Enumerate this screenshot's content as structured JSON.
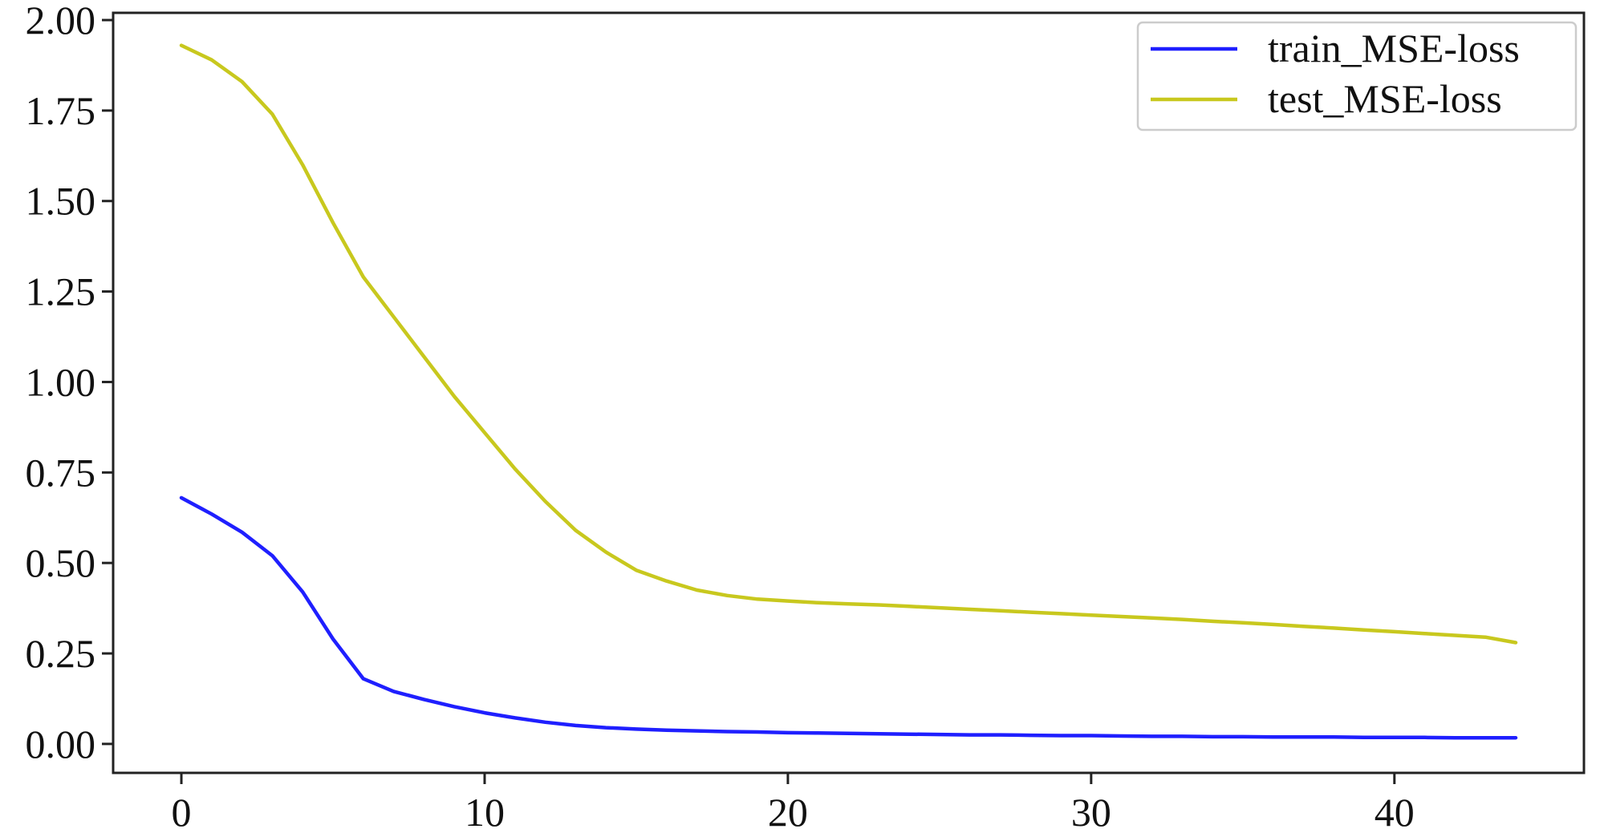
{
  "chart_data": {
    "type": "line",
    "title": "",
    "xlabel": "",
    "ylabel": "",
    "xlim": [
      -2.25,
      46.25
    ],
    "ylim": [
      -0.08,
      2.02
    ],
    "grid": false,
    "legend_position": "top-right",
    "xticks": [
      0,
      10,
      20,
      30,
      40
    ],
    "xtick_labels": [
      "0",
      "10",
      "20",
      "30",
      "40"
    ],
    "yticks": [
      0,
      0.25,
      0.5,
      0.75,
      1.0,
      1.25,
      1.5,
      1.75,
      2.0
    ],
    "ytick_labels": [
      "0.00",
      "0.25",
      "0.50",
      "0.75",
      "1.00",
      "1.25",
      "1.50",
      "1.75",
      "2.00"
    ],
    "x": [
      0,
      1,
      2,
      3,
      4,
      5,
      6,
      7,
      8,
      9,
      10,
      11,
      12,
      13,
      14,
      15,
      16,
      17,
      18,
      19,
      20,
      21,
      22,
      23,
      24,
      25,
      26,
      27,
      28,
      29,
      30,
      31,
      32,
      33,
      34,
      35,
      36,
      37,
      38,
      39,
      40,
      41,
      42,
      43,
      44
    ],
    "series": [
      {
        "name": "train_MSE-loss",
        "color": "#1f1fff",
        "values": [
          0.68,
          0.635,
          0.585,
          0.52,
          0.42,
          0.29,
          0.18,
          0.145,
          0.123,
          0.103,
          0.086,
          0.072,
          0.06,
          0.051,
          0.045,
          0.041,
          0.038,
          0.036,
          0.034,
          0.033,
          0.031,
          0.03,
          0.029,
          0.028,
          0.027,
          0.026,
          0.025,
          0.025,
          0.024,
          0.023,
          0.023,
          0.022,
          0.021,
          0.021,
          0.02,
          0.02,
          0.019,
          0.019,
          0.019,
          0.018,
          0.018,
          0.018,
          0.017,
          0.017,
          0.017
        ]
      },
      {
        "name": "test_MSE-loss",
        "color": "#c8c81e",
        "values": [
          1.93,
          1.89,
          1.83,
          1.74,
          1.6,
          1.44,
          1.29,
          1.18,
          1.07,
          0.96,
          0.86,
          0.76,
          0.67,
          0.59,
          0.53,
          0.48,
          0.45,
          0.425,
          0.41,
          0.4,
          0.395,
          0.39,
          0.387,
          0.384,
          0.38,
          0.376,
          0.372,
          0.368,
          0.364,
          0.36,
          0.356,
          0.352,
          0.348,
          0.344,
          0.339,
          0.335,
          0.33,
          0.325,
          0.32,
          0.315,
          0.31,
          0.305,
          0.3,
          0.295,
          0.28
        ]
      }
    ]
  }
}
